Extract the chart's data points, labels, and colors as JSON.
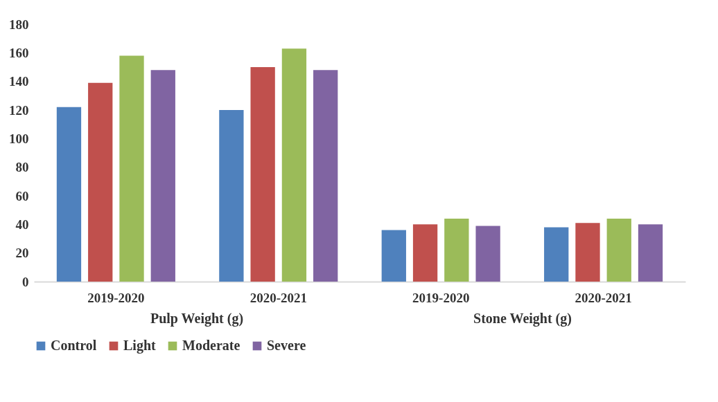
{
  "chart_data": {
    "type": "bar",
    "categories": [
      "2019-2020",
      "2020-2021",
      "2019-2020",
      "2020-2021"
    ],
    "series": [
      {
        "name": "Control",
        "color": "#4f81bd",
        "values": [
          122,
          120,
          36,
          38
        ]
      },
      {
        "name": "Light",
        "color": "#c0504d",
        "values": [
          139,
          150,
          40,
          41
        ]
      },
      {
        "name": "Moderate",
        "color": "#9bbb59",
        "values": [
          158,
          163,
          44,
          44
        ]
      },
      {
        "name": "Severe",
        "color": "#8064a2",
        "values": [
          148,
          148,
          39,
          40
        ]
      }
    ],
    "annotations": [
      "Pulp Weight (g)",
      "Stone Weight (g)"
    ],
    "ylim": [
      0,
      180
    ],
    "yticks": [
      0,
      20,
      40,
      60,
      80,
      100,
      120,
      140,
      160,
      180
    ],
    "grid": false,
    "legend": "bottom"
  }
}
